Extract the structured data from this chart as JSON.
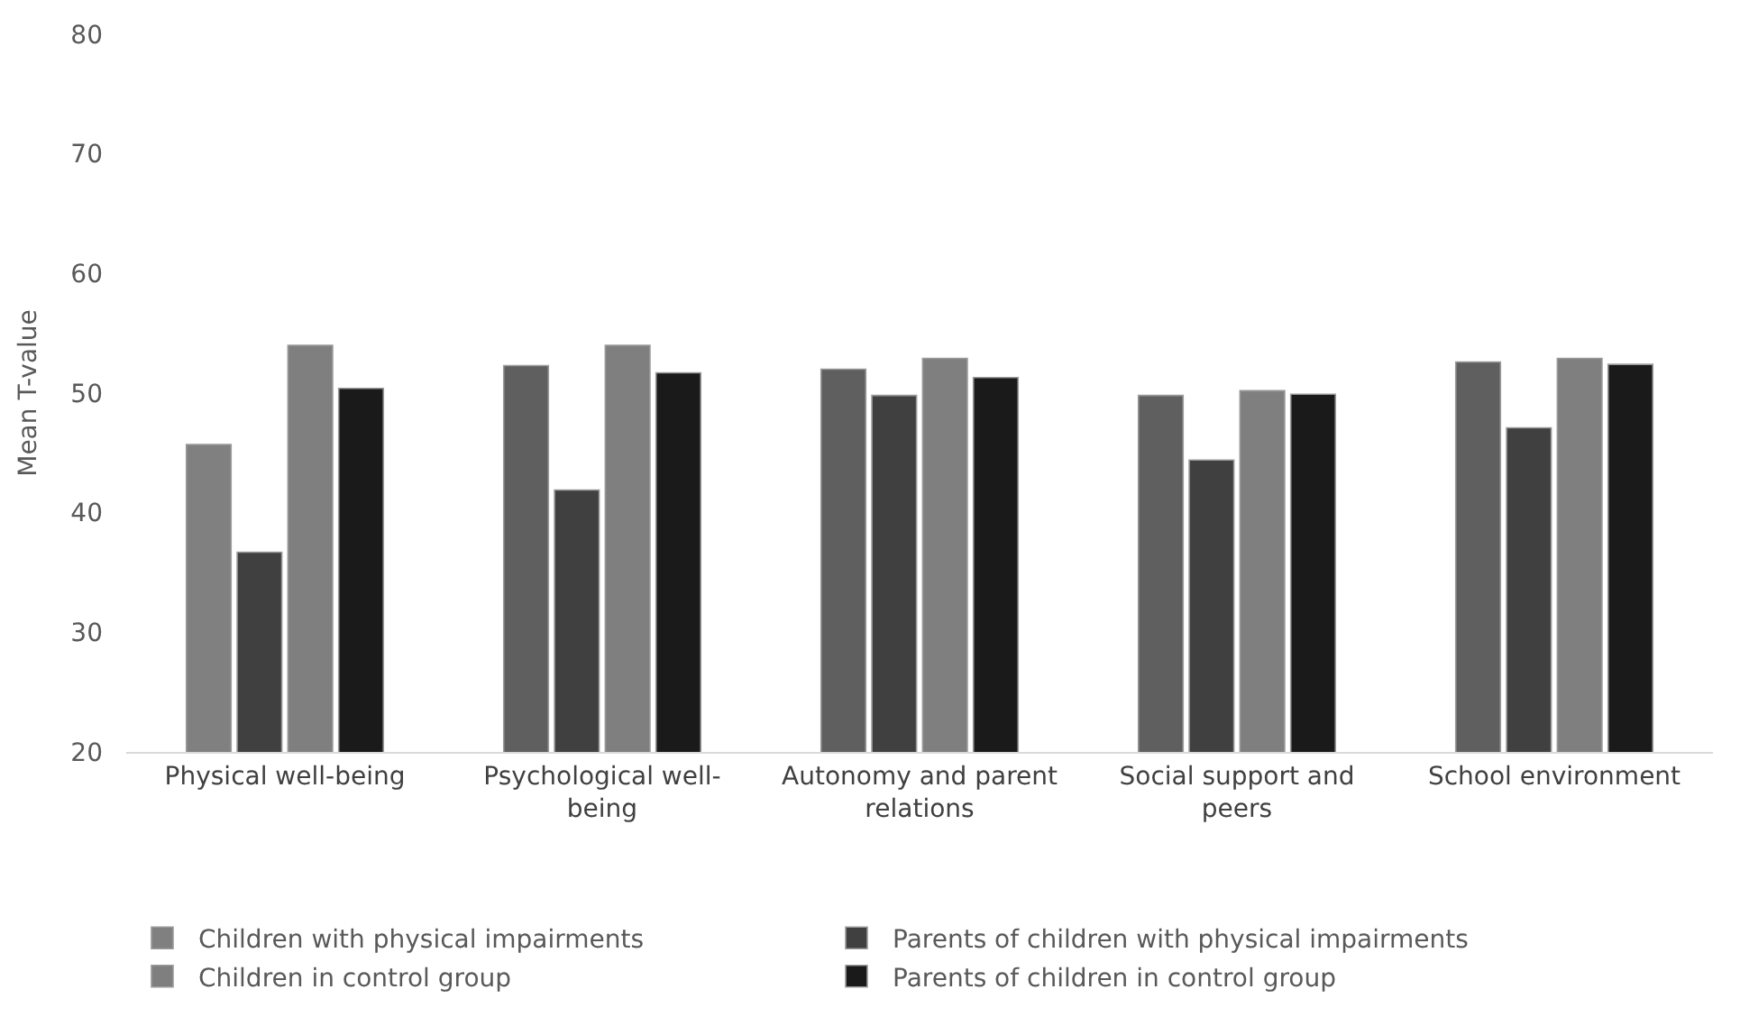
{
  "chart_data": {
    "type": "bar",
    "ylabel": "Mean T-value",
    "categories": [
      "Physical well-being",
      "Psychological well-being",
      "Autonomy and parent relations",
      "Social support and peers",
      "School environment"
    ],
    "series": [
      {
        "name": "Children with physical impairments",
        "color": "#5f5f5f",
        "colors": [
          "#808080",
          "#5f5f5f",
          "#5f5f5f",
          "#5f5f5f",
          "#5f5f5f"
        ],
        "values": [
          45.7,
          52.3,
          52.0,
          49.8,
          52.6
        ]
      },
      {
        "name": "Parents of children with physical impairments",
        "color": "#404040",
        "values": [
          36.7,
          41.9,
          49.8,
          44.4,
          47.1
        ]
      },
      {
        "name": "Children in control group",
        "color": "#7f7f7f",
        "values": [
          54.0,
          54.0,
          52.9,
          50.2,
          52.9
        ]
      },
      {
        "name": "Parents of children in control group",
        "color": "#1a1a1a",
        "values": [
          50.4,
          51.7,
          51.3,
          49.9,
          52.4
        ]
      }
    ],
    "ylim": [
      20,
      80
    ],
    "yticks": [
      20,
      30,
      40,
      50,
      60,
      70,
      80
    ],
    "grid": false,
    "legend": "bottom"
  }
}
